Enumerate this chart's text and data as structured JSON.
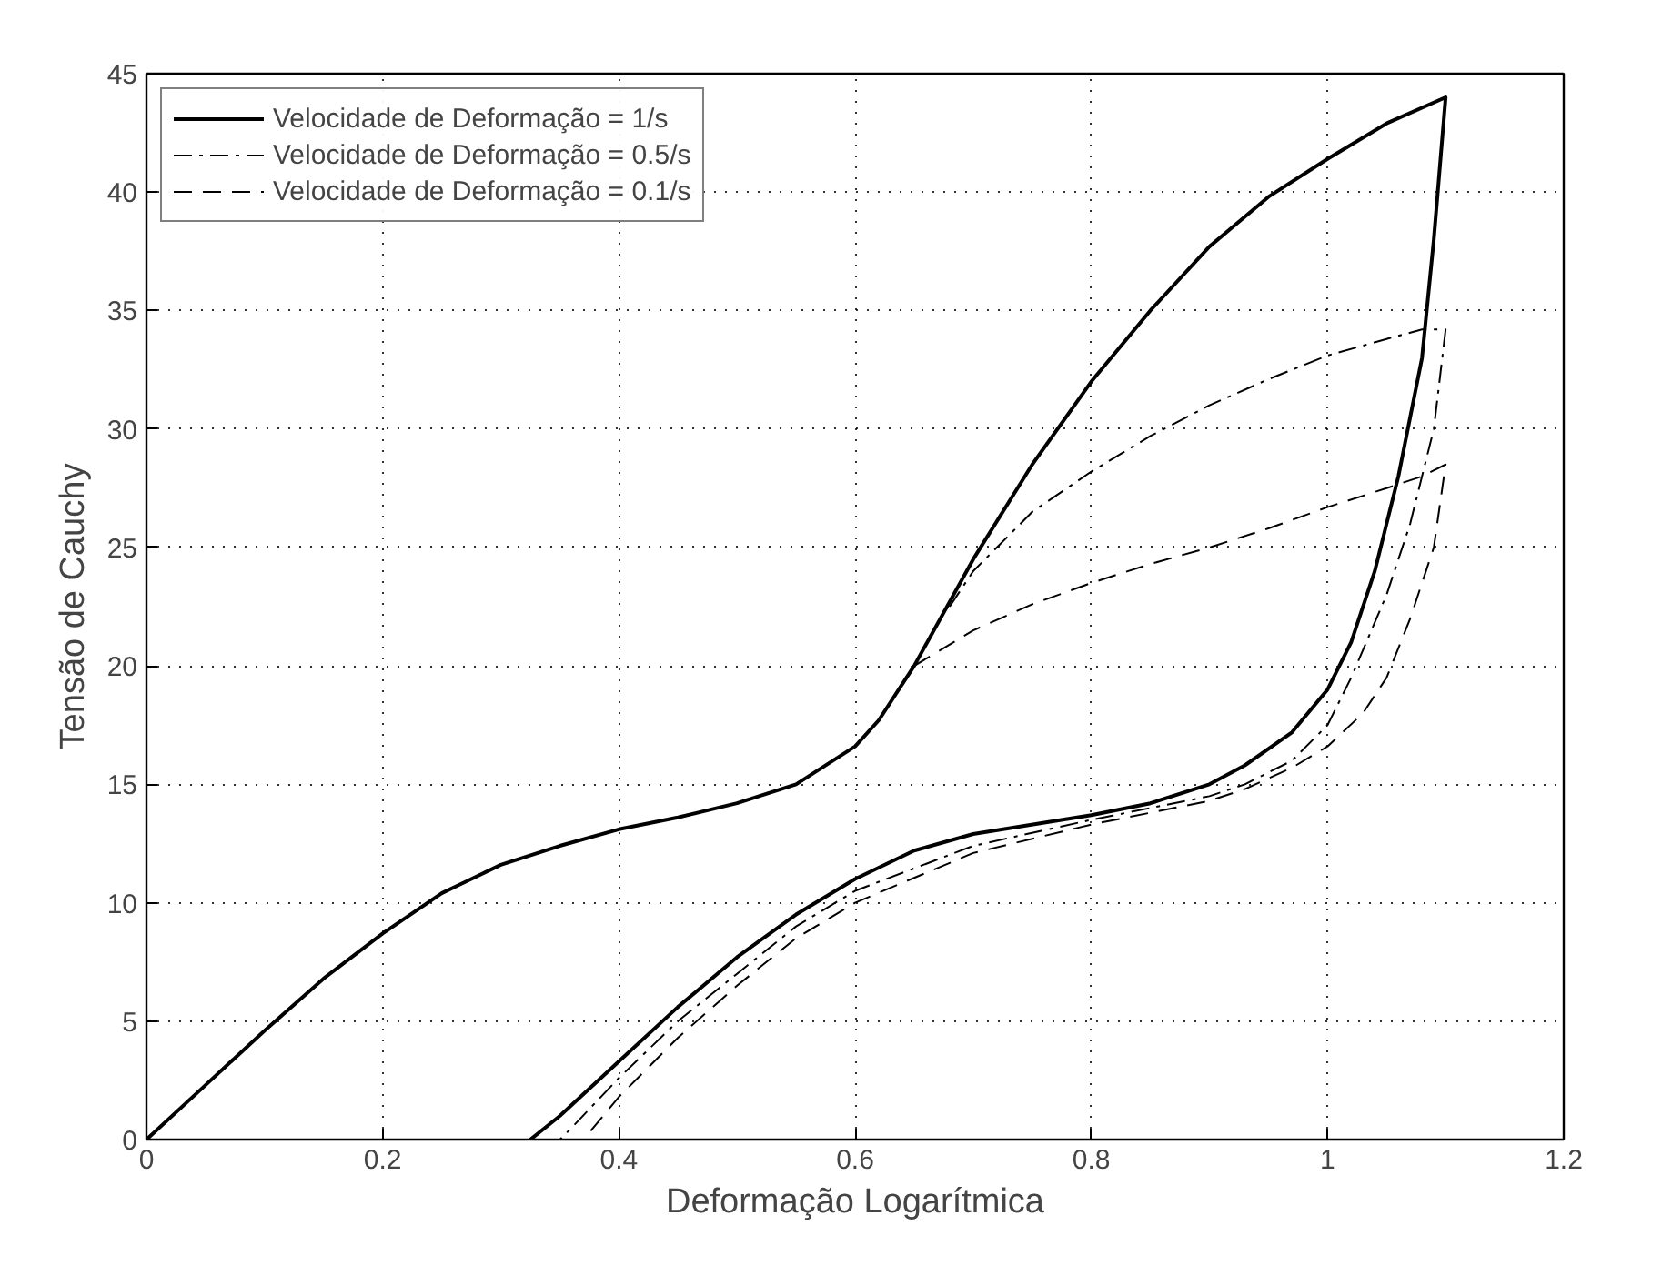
{
  "chart_data": {
    "type": "line",
    "xlabel": "Deformação Logarítmica",
    "ylabel": "Tensão de Cauchy",
    "xlim": [
      0,
      1.2
    ],
    "ylim": [
      0,
      45
    ],
    "xticks": [
      0,
      0.2,
      0.4,
      0.6,
      0.8,
      1,
      1.2
    ],
    "yticks": [
      0,
      5,
      10,
      15,
      20,
      25,
      30,
      35,
      40,
      45
    ],
    "grid": true,
    "legend": "top left",
    "marker": "none",
    "series": [
      {
        "name": "Velocidade de Deformação = 1/s",
        "color": "#000000",
        "line_style": "solid",
        "x": [
          0,
          0.05,
          0.1,
          0.15,
          0.2,
          0.25,
          0.3,
          0.35,
          0.4,
          0.45,
          0.5,
          0.55,
          0.6,
          0.62,
          0.65,
          0.7,
          0.75,
          0.8,
          0.85,
          0.9,
          0.95,
          1.0,
          1.05,
          1.1,
          1.09,
          1.08,
          1.06,
          1.04,
          1.02,
          1.0,
          0.97,
          0.93,
          0.9,
          0.85,
          0.8,
          0.7,
          0.65,
          0.6,
          0.55,
          0.5,
          0.45,
          0.4,
          0.35,
          0.325
        ],
        "values": [
          0,
          2.3,
          4.6,
          6.8,
          8.7,
          10.4,
          11.6,
          12.4,
          13.1,
          13.6,
          14.2,
          15.0,
          16.6,
          17.7,
          20,
          24.5,
          28.5,
          32,
          35,
          37.7,
          39.8,
          41.4,
          42.9,
          44,
          38,
          33,
          28,
          24,
          21,
          19,
          17.2,
          15.8,
          15.0,
          14.2,
          13.7,
          12.9,
          12.2,
          11,
          9.5,
          7.7,
          5.6,
          3.3,
          1,
          0
        ]
      },
      {
        "name": "Velocidade de Deformação = 0.5/s",
        "color": "#000000",
        "line_style": "dashdot",
        "x": [
          0.68,
          0.7,
          0.75,
          0.8,
          0.85,
          0.9,
          0.95,
          1.0,
          1.05,
          1.08,
          1.1,
          1.1,
          1.09,
          1.07,
          1.05,
          1.02,
          1.0,
          0.97,
          0.93,
          0.9,
          0.85,
          0.8,
          0.7,
          0.6,
          0.55,
          0.5,
          0.45,
          0.4,
          0.36,
          0.35
        ],
        "values": [
          22.5,
          24,
          26.5,
          28.2,
          29.7,
          31,
          32.1,
          33.1,
          33.8,
          34.2,
          34.2,
          34.2,
          30,
          26,
          23,
          19.5,
          17.5,
          16,
          15,
          14.5,
          14,
          13.5,
          12.4,
          10.5,
          9,
          7,
          5,
          2.6,
          0.5,
          0
        ]
      },
      {
        "name": "Velocidade de Deformação = 0.1/s",
        "color": "#000000",
        "line_style": "dashed",
        "x": [
          0.65,
          0.7,
          0.75,
          0.8,
          0.85,
          0.9,
          0.95,
          1.0,
          1.05,
          1.08,
          1.1,
          1.09,
          1.07,
          1.05,
          1.03,
          1.0,
          0.97,
          0.93,
          0.9,
          0.85,
          0.8,
          0.7,
          0.6,
          0.55,
          0.5,
          0.45,
          0.4,
          0.37
        ],
        "values": [
          20,
          21.5,
          22.6,
          23.5,
          24.3,
          25,
          25.8,
          26.7,
          27.5,
          28.0,
          28.5,
          25,
          22,
          19.5,
          18,
          16.6,
          15.7,
          14.8,
          14.3,
          13.8,
          13.3,
          12.1,
          10,
          8.5,
          6.5,
          4.3,
          1.8,
          0
        ]
      }
    ]
  }
}
